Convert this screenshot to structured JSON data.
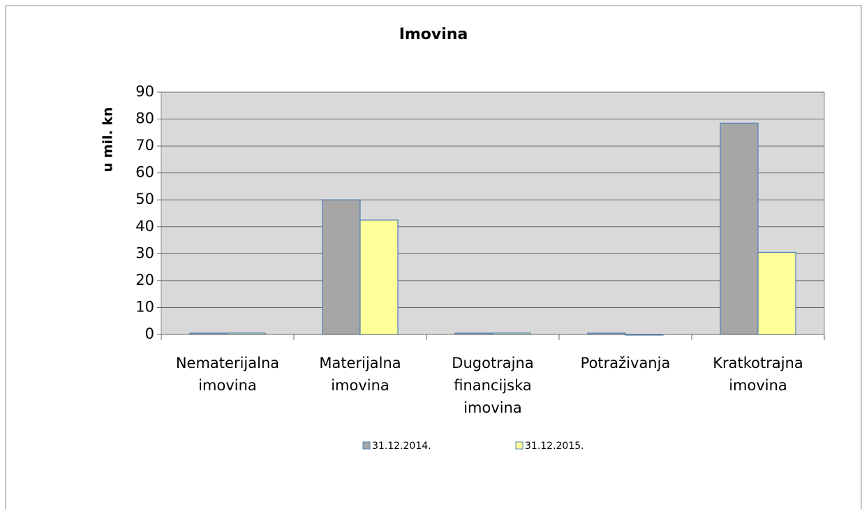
{
  "chart_data": {
    "type": "bar",
    "title": "Imovina",
    "y_label": "u mil. kn",
    "categories": [
      "Nematerijalna imovina",
      "Materijalna imovina",
      "Dugotrajna financijska imovina",
      "Potraživanja",
      "Kratkotrajna imovina"
    ],
    "series": [
      {
        "name": "31.12.2014.",
        "color": "#a6a6a6",
        "values": [
          0.5,
          50,
          0.5,
          0.5,
          78.5
        ]
      },
      {
        "name": "31.12.2015.",
        "color": "#ffff99",
        "values": [
          0.5,
          42.5,
          0.5,
          0,
          30.5
        ]
      }
    ],
    "ylim": [
      0,
      90
    ],
    "yticks": [
      0,
      10,
      20,
      30,
      40,
      50,
      60,
      70,
      80,
      90
    ],
    "grid": true
  }
}
